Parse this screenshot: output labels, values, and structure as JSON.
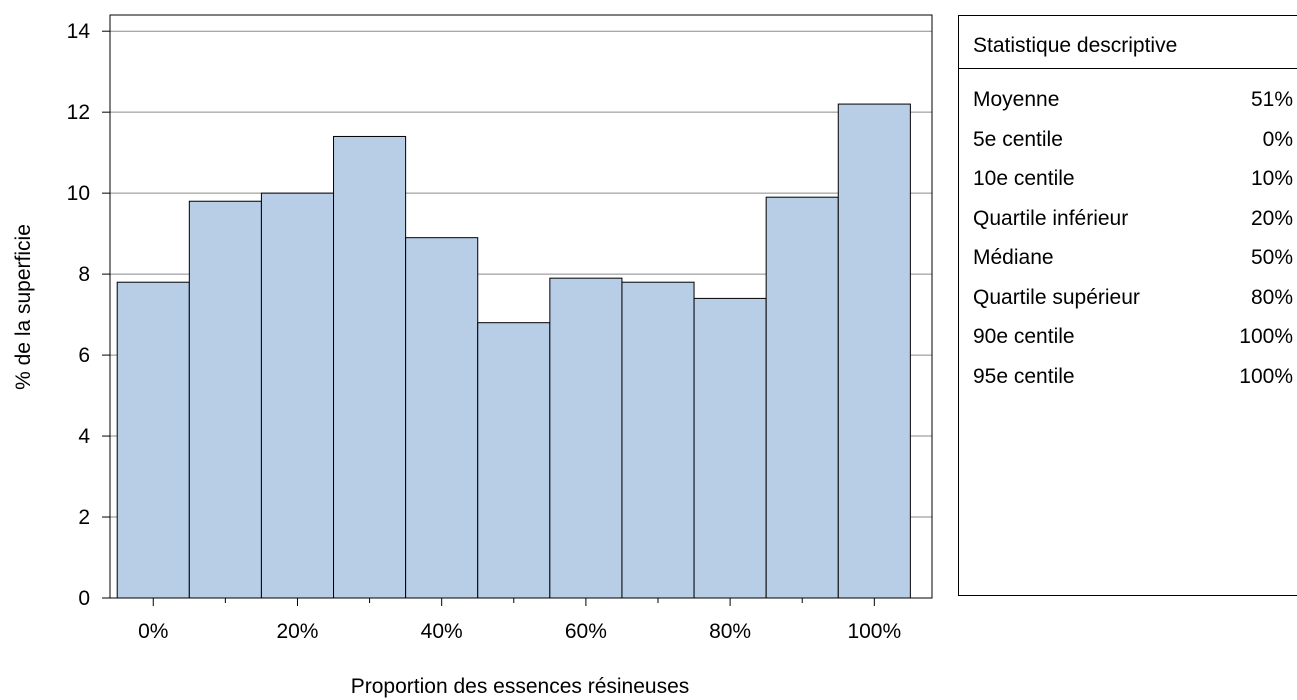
{
  "chart_data": {
    "type": "bar",
    "xlabel": "Proportion des essences résineuses",
    "ylabel": "% de la superficie",
    "bins": [
      0,
      10,
      20,
      30,
      40,
      50,
      60,
      70,
      80,
      90,
      100
    ],
    "values": [
      7.8,
      9.8,
      10.0,
      11.4,
      8.9,
      6.8,
      7.9,
      7.8,
      7.4,
      9.9,
      12.2
    ],
    "xlim": [
      -6,
      108
    ],
    "ylim": [
      0,
      14.4
    ],
    "yticks": [
      0,
      2,
      4,
      6,
      8,
      10,
      12,
      14
    ],
    "xticks": [
      {
        "value": 0,
        "label": "0%"
      },
      {
        "value": 20,
        "label": "20%"
      },
      {
        "value": 40,
        "label": "40%"
      },
      {
        "value": 60,
        "label": "60%"
      },
      {
        "value": 80,
        "label": "80%"
      },
      {
        "value": 100,
        "label": "100%"
      }
    ],
    "x_minor_ticks": [
      10,
      30,
      50,
      70,
      90
    ],
    "grid": "horizontal",
    "bar_fill": "#b8cde6",
    "bar_stroke": "#000000"
  },
  "stats": {
    "title": "Statistique descriptive",
    "rows": [
      {
        "label": "Moyenne",
        "value": "51%"
      },
      {
        "label": "5e centile",
        "value": "0%"
      },
      {
        "label": "10e centile",
        "value": "10%"
      },
      {
        "label": "Quartile inférieur",
        "value": "20%"
      },
      {
        "label": "Médiane",
        "value": "50%"
      },
      {
        "label": "Quartile supérieur",
        "value": "80%"
      },
      {
        "label": "90e centile",
        "value": "100%"
      },
      {
        "label": "95e centile",
        "value": "100%"
      }
    ]
  }
}
